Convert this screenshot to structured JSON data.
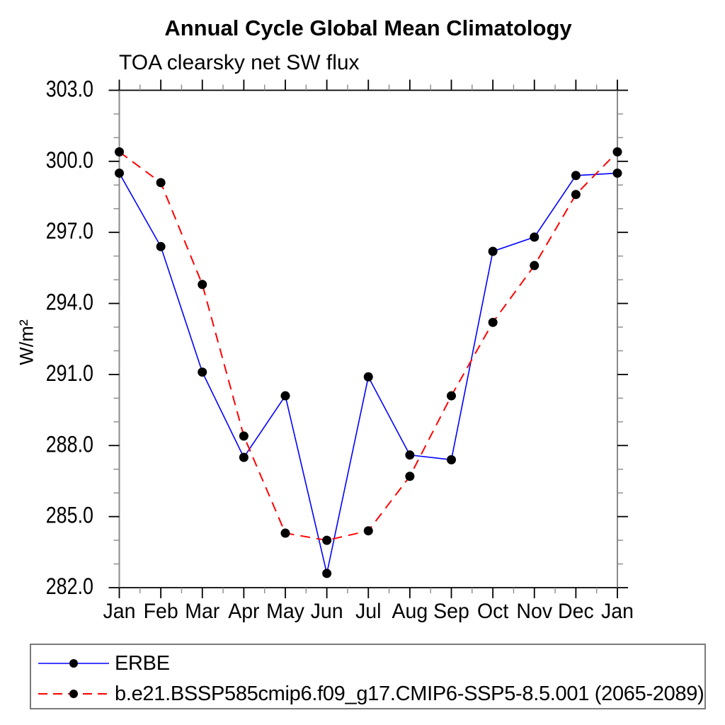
{
  "title": "Annual Cycle Global Mean Climatology",
  "subtitle": "TOA clearsky net SW flux",
  "y_axis_title": "W/m²",
  "colors": {
    "series_erbe": "#0000ff",
    "series_model": "#ff0000",
    "marker": "#000000",
    "frame_horizontal": "#000000",
    "frame_vertical": "#8a8a8a",
    "tick_major": "#000000",
    "tick_minor": "#8a8a8a",
    "legend_border": "#7a7a7a",
    "text": "#000000",
    "background": "#ffffff"
  },
  "legend": {
    "items": [
      {
        "label": "ERBE",
        "color": "#0000ff",
        "style": "solid"
      },
      {
        "label": "b.e21.BSSP585cmip6.f09_g17.CMIP6-SSP5-8.5.001 (2065-2089)",
        "color": "#ff0000",
        "style": "dashed"
      }
    ]
  },
  "chart_data": {
    "type": "line",
    "title": "Annual Cycle Global Mean Climatology",
    "subtitle": "TOA clearsky net SW flux",
    "xlabel": "",
    "ylabel": "W/m²",
    "categories": [
      "Jan",
      "Feb",
      "Mar",
      "Apr",
      "May",
      "Jun",
      "Jul",
      "Aug",
      "Sep",
      "Oct",
      "Nov",
      "Dec",
      "Jan"
    ],
    "series": [
      {
        "name": "ERBE",
        "color": "#0000ff",
        "line_style": "solid",
        "marker": "circle",
        "marker_color": "#000000",
        "values": [
          299.5,
          296.4,
          291.1,
          287.5,
          290.1,
          282.6,
          290.9,
          287.6,
          287.4,
          296.2,
          296.8,
          299.4,
          299.5
        ]
      },
      {
        "name": "b.e21.BSSP585cmip6.f09_g17.CMIP6-SSP5-8.5.001 (2065-2089)",
        "color": "#ff0000",
        "line_style": "dashed",
        "marker": "circle",
        "marker_color": "#000000",
        "values": [
          300.4,
          299.1,
          294.8,
          288.4,
          284.3,
          284.0,
          284.4,
          286.7,
          290.1,
          293.2,
          295.6,
          298.6,
          300.4
        ]
      }
    ],
    "ylim": [
      282.0,
      303.0
    ],
    "y_major_ticks": [
      282.0,
      285.0,
      288.0,
      291.0,
      294.0,
      297.0,
      300.0,
      303.0
    ],
    "y_tick_labels": [
      "282.0",
      "285.0",
      "288.0",
      "291.0",
      "294.0",
      "297.0",
      "300.0",
      "303.0"
    ],
    "y_minor_step": 1.0,
    "x_minor_step": 0.5,
    "grid": false,
    "legend_position": "bottom"
  }
}
